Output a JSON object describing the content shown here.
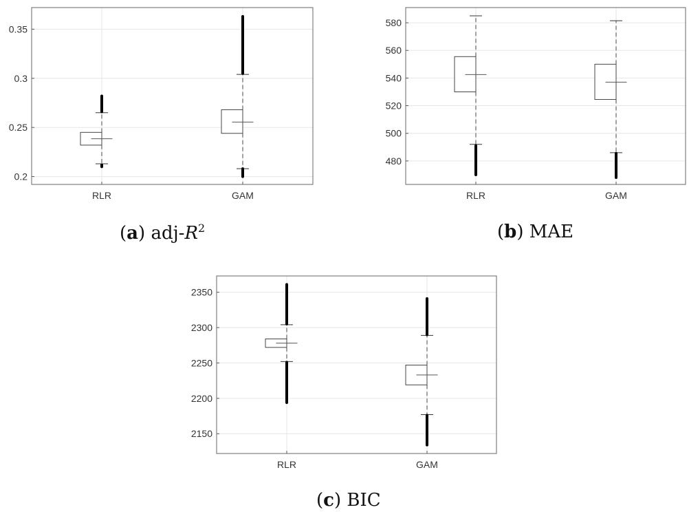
{
  "figures": [
    {
      "id": "a",
      "caption_letter": "a",
      "caption_text": "adj-",
      "caption_math": "R",
      "caption_sup": "2"
    },
    {
      "id": "b",
      "caption_letter": "b",
      "caption_text": "MAE"
    },
    {
      "id": "c",
      "caption_letter": "c",
      "caption_text": "BIC"
    }
  ],
  "chart_data": [
    {
      "type": "box",
      "id": "a",
      "categories": [
        "RLR",
        "GAM"
      ],
      "ylim": [
        0.192,
        0.372
      ],
      "yticks": [
        0.2,
        0.25,
        0.3,
        0.35
      ],
      "ytick_labels": [
        "0.2",
        "0.25",
        "0.3",
        "0.35"
      ],
      "grid": true,
      "boxes": [
        {
          "name": "RLR",
          "q1": 0.232,
          "median": 0.2385,
          "q3": 0.245,
          "whisker_low": 0.213,
          "whisker_high": 0.265,
          "outliers_low": [
            0.21,
            0.212
          ],
          "outliers_high": [
            0.266,
            0.282
          ]
        },
        {
          "name": "GAM",
          "q1": 0.244,
          "median": 0.2555,
          "q3": 0.268,
          "whisker_low": 0.208,
          "whisker_high": 0.304,
          "outliers_low": [
            0.2,
            0.208
          ],
          "outliers_high": [
            0.305,
            0.363
          ]
        }
      ]
    },
    {
      "type": "box",
      "id": "b",
      "categories": [
        "RLR",
        "GAM"
      ],
      "ylim": [
        463,
        591
      ],
      "yticks": [
        480,
        500,
        520,
        540,
        560,
        580
      ],
      "ytick_labels": [
        "480",
        "500",
        "520",
        "540",
        "560",
        "580"
      ],
      "grid": true,
      "boxes": [
        {
          "name": "RLR",
          "q1": 530,
          "median": 542.5,
          "q3": 555.5,
          "whisker_low": 492,
          "whisker_high": 585,
          "outliers_low": [
            470,
            491
          ],
          "outliers_high": []
        },
        {
          "name": "GAM",
          "q1": 524.5,
          "median": 537,
          "q3": 550,
          "whisker_low": 486,
          "whisker_high": 581.5,
          "outliers_low": [
            468,
            485.5
          ],
          "outliers_high": []
        }
      ]
    },
    {
      "type": "box",
      "id": "c",
      "categories": [
        "RLR",
        "GAM"
      ],
      "ylim": [
        2122,
        2373
      ],
      "yticks": [
        2150,
        2200,
        2250,
        2300,
        2350
      ],
      "ytick_labels": [
        "2150",
        "2200",
        "2250",
        "2300",
        "2350"
      ],
      "grid": true,
      "boxes": [
        {
          "name": "RLR",
          "q1": 2272,
          "median": 2278,
          "q3": 2284,
          "whisker_low": 2252,
          "whisker_high": 2304,
          "outliers_low": [
            2194,
            2251
          ],
          "outliers_high": [
            2305,
            2361
          ]
        },
        {
          "name": "GAM",
          "q1": 2219,
          "median": 2233,
          "q3": 2247,
          "whisker_low": 2177,
          "whisker_high": 2289,
          "outliers_low": [
            2134,
            2176
          ],
          "outliers_high": [
            2290,
            2341
          ]
        }
      ]
    }
  ]
}
